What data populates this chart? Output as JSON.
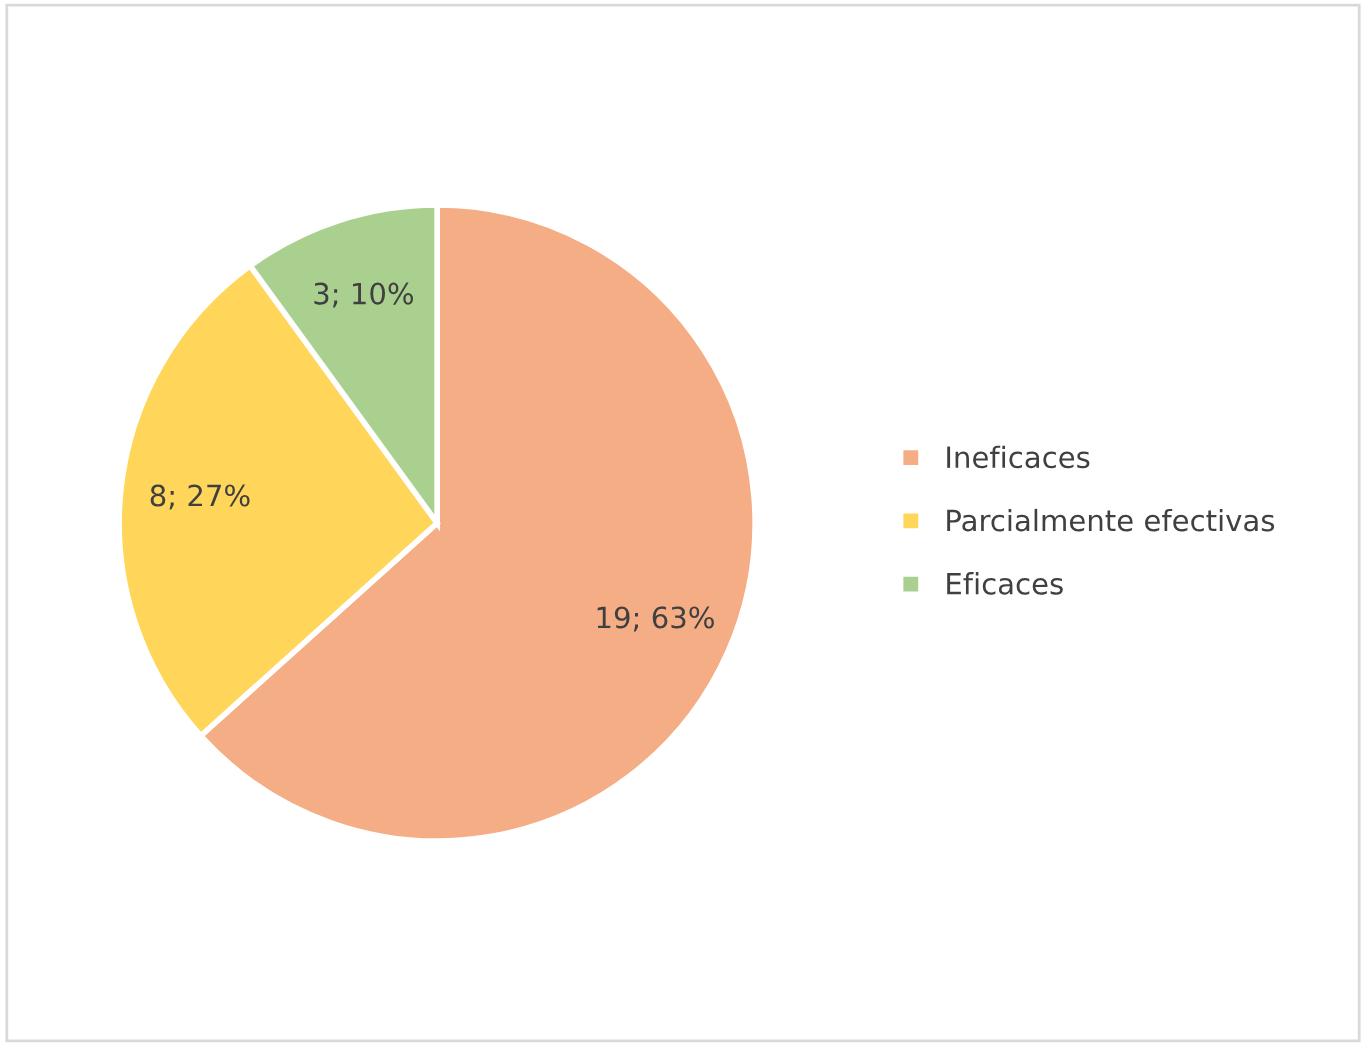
{
  "chart_data": {
    "type": "pie",
    "categories": [
      "Ineficaces",
      "Parcialmente efectivas",
      "Eficaces"
    ],
    "values": [
      19,
      8,
      3
    ],
    "value_labels": [
      "19; 63%",
      "8; 27%",
      "3; 10%"
    ],
    "colors": [
      "#f4ad84",
      "#ffd659",
      "#a9d08e"
    ],
    "legend": "right"
  }
}
